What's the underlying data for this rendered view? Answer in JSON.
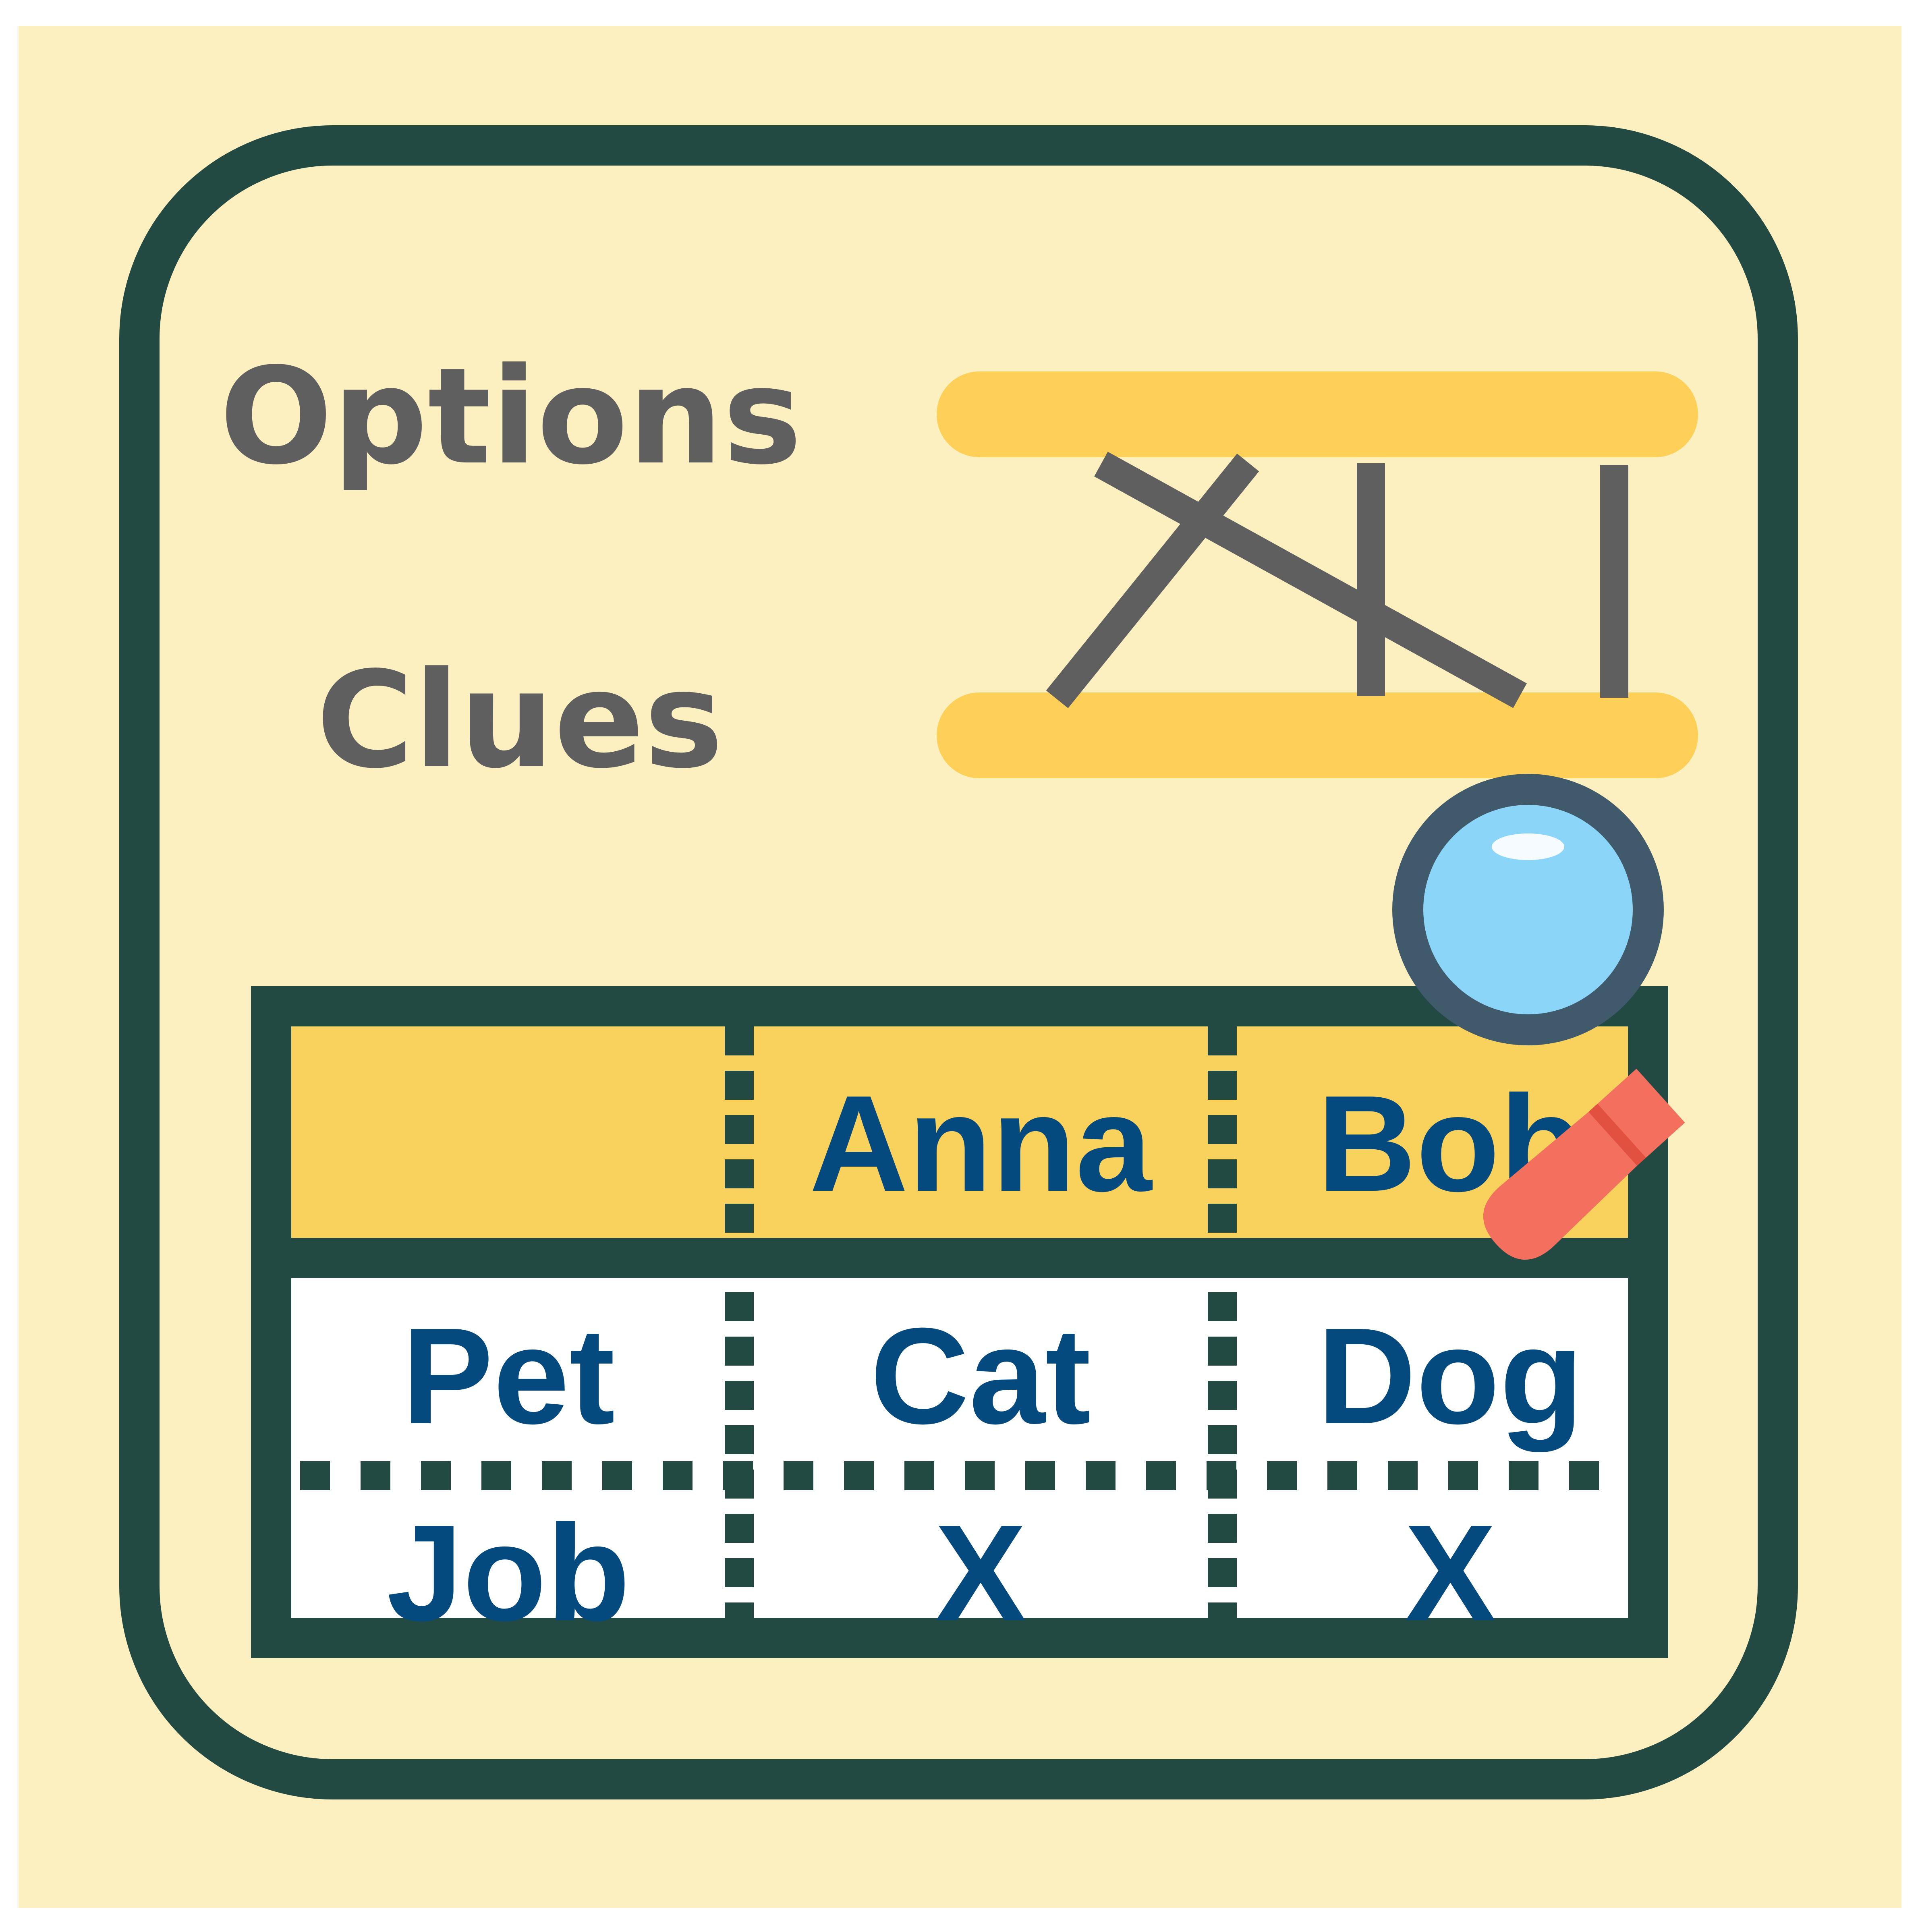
{
  "icon": {
    "name": "logic-grid-puzzle-icon"
  },
  "labels": {
    "options": "Options",
    "clues": "Clues"
  },
  "grid": {
    "header": [
      "",
      "Anna",
      "Bob"
    ],
    "rows": [
      [
        "Pet",
        "Cat",
        "Dog"
      ],
      [
        "Job",
        "X",
        "X"
      ]
    ]
  },
  "colors": {
    "background": "#fcf0c1",
    "frame": "#224a42",
    "highlight": "#fed057",
    "header_fill": "#f9d15d",
    "text_blue": "#044a7e",
    "text_gray": "#5f5f5f",
    "magnifier_lens": "#8bd5f8",
    "magnifier_rim": "#405a6b",
    "magnifier_handle": "#f2705d"
  }
}
